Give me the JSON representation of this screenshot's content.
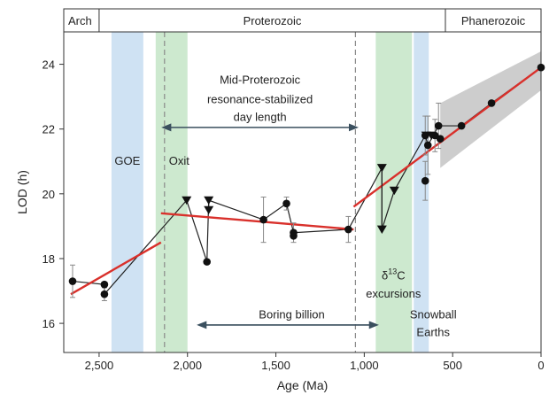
{
  "chart_data": {
    "type": "scatter",
    "title": "",
    "xlabel": "Age (Ma)",
    "ylabel": "LOD (h)",
    "xlim": [
      2700,
      0
    ],
    "ylim": [
      15.1,
      25.0
    ],
    "x_reversed": true,
    "grid": false,
    "x_ticks": [
      2500,
      2000,
      1500,
      1000,
      500,
      0
    ],
    "x_tick_labels": [
      "2,500",
      "2,000",
      "1,500",
      "1,000",
      "500",
      "0"
    ],
    "y_ticks": [
      16,
      18,
      20,
      22,
      24
    ],
    "y_tick_labels": [
      "16",
      "18",
      "20",
      "22",
      "24"
    ],
    "eons": [
      {
        "label": "Arch",
        "start": 2700,
        "end": 2500
      },
      {
        "label": "Proterozoic",
        "start": 2500,
        "end": 541
      },
      {
        "label": "Phanerozoic",
        "start": 541,
        "end": 0
      }
    ],
    "bands": [
      {
        "label": "GOE",
        "start": 2430,
        "end": 2250,
        "color": "#cfe2f3"
      },
      {
        "label": "Oxit",
        "start": 2180,
        "end": 2000,
        "color": "#cde9cf"
      },
      {
        "label": "δ13C excursions",
        "start": 935,
        "end": 730,
        "color": "#cde9cf"
      },
      {
        "label": "Snowball Earths",
        "start": 720,
        "end": 635,
        "color": "#cfe2f3"
      }
    ],
    "annotations": {
      "goe": "GOE",
      "oxit": "Oxit",
      "mid_line1": "Mid-Proterozoic",
      "mid_line2": "resonance-stabilized",
      "mid_line3": "day length",
      "boring": "Boring billion",
      "d13c_prefix": "δ",
      "d13c_sup": "13",
      "d13c_suffix": "C",
      "excursions": "excursions",
      "snowball1": "Snowball",
      "snowball2": "Earths"
    },
    "dashed_lines_x": [
      2130,
      1050
    ],
    "series": [
      {
        "markers": "circle",
        "points": [
          {
            "x": 2650,
            "y": 17.3,
            "err": 0.5
          },
          {
            "x": 2470,
            "y": 16.9,
            "err": 0.2
          },
          {
            "x": 2470,
            "y": 17.2
          },
          {
            "x": 1890,
            "y": 17.9
          },
          {
            "x": 1570,
            "y": 19.2,
            "err": 0.7
          },
          {
            "x": 1440,
            "y": 19.7,
            "err": 0.2
          },
          {
            "x": 1400,
            "y": 18.8,
            "err": 0.3
          },
          {
            "x": 1400,
            "y": 18.7
          },
          {
            "x": 1090,
            "y": 18.9,
            "err": 0.4
          },
          {
            "x": 655,
            "y": 21.8,
            "err": 0.6
          },
          {
            "x": 655,
            "y": 20.4,
            "err": 0.6
          },
          {
            "x": 640,
            "y": 21.5,
            "err": 0.9
          },
          {
            "x": 600,
            "y": 21.8,
            "err": 0.5
          },
          {
            "x": 580,
            "y": 22.1,
            "err": 0.7
          },
          {
            "x": 570,
            "y": 21.7
          },
          {
            "x": 450,
            "y": 22.1
          },
          {
            "x": 280,
            "y": 22.8
          },
          {
            "x": 0,
            "y": 23.9
          }
        ]
      },
      {
        "markers": "triangle-down",
        "points": [
          {
            "x": 2005,
            "y": 19.8
          },
          {
            "x": 1880,
            "y": 19.8
          },
          {
            "x": 1880,
            "y": 19.5
          },
          {
            "x": 900,
            "y": 20.8
          },
          {
            "x": 900,
            "y": 18.9
          },
          {
            "x": 830,
            "y": 20.1
          },
          {
            "x": 650,
            "y": 21.8
          },
          {
            "x": 620,
            "y": 21.8
          }
        ]
      }
    ],
    "connector_path": [
      [
        2650,
        17.3
      ],
      [
        2470,
        17.2
      ],
      [
        2470,
        16.9
      ],
      [
        2005,
        19.8
      ],
      [
        1890,
        17.9
      ],
      [
        1880,
        19.8
      ],
      [
        1570,
        19.2
      ],
      [
        1440,
        19.7
      ],
      [
        1400,
        18.8
      ],
      [
        1090,
        18.9
      ],
      [
        900,
        20.8
      ],
      [
        900,
        18.9
      ],
      [
        830,
        20.1
      ],
      [
        655,
        21.8
      ],
      [
        640,
        21.5
      ],
      [
        580,
        22.1
      ]
    ],
    "arrow_lines": [
      {
        "from": [
          2130,
          18.9
        ],
        "to": [
          900,
          19.3
        ],
        "label_ref": "error_range"
      }
    ],
    "range_arrows": [
      {
        "from": 2130,
        "to": 1050,
        "y": 22.05,
        "label": "mid"
      },
      {
        "from": 1930,
        "to": 935,
        "y": 15.95,
        "label": "boring"
      }
    ],
    "fit_lines": [
      {
        "x1": 2660,
        "y1": 16.9,
        "x2": 2150,
        "y2": 18.5,
        "color": "#d9302b"
      },
      {
        "x1": 2150,
        "y1": 19.4,
        "x2": 1060,
        "y2": 18.9,
        "color": "#d9302b"
      },
      {
        "x1": 1060,
        "y1": 19.6,
        "x2": 0,
        "y2": 23.9,
        "color": "#d9302b"
      }
    ],
    "fit_band": {
      "points": [
        [
          570,
          20.8
        ],
        [
          0,
          23.2
        ],
        [
          0,
          24.4
        ],
        [
          570,
          22.8
        ]
      ],
      "color": "#c4c4c4"
    }
  }
}
